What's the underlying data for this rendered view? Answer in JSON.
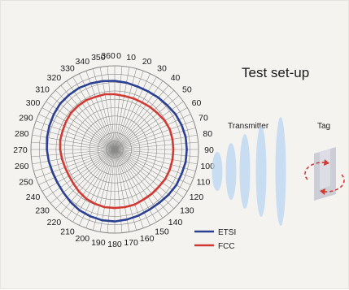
{
  "chart_data": {
    "type": "polar-line",
    "title": "",
    "angles": [
      0,
      10,
      20,
      30,
      40,
      50,
      60,
      70,
      80,
      90,
      100,
      110,
      120,
      130,
      140,
      150,
      160,
      170,
      180,
      190,
      200,
      210,
      220,
      230,
      240,
      250,
      260,
      270,
      280,
      290,
      300,
      310,
      320,
      330,
      340,
      350
    ],
    "tick_labels": [
      "0",
      "10",
      "20",
      "30",
      "40",
      "50",
      "60",
      "70",
      "80",
      "90",
      "100",
      "110",
      "120",
      "130",
      "140",
      "150",
      "160",
      "170",
      "180",
      "190",
      "200",
      "210",
      "220",
      "230",
      "240",
      "250",
      "260",
      "270",
      "280",
      "290",
      "300",
      "310",
      "320",
      "330",
      "340",
      "350",
      "360"
    ],
    "rlim": [
      0,
      10
    ],
    "grid": true,
    "legend_position": "bottom-right",
    "series": [
      {
        "name": "ETSI",
        "color": "#2b3f93",
        "values": [
          8.2,
          8.1,
          8.0,
          8.0,
          8.1,
          8.2,
          8.4,
          8.5,
          8.6,
          8.6,
          8.6,
          8.5,
          8.5,
          8.4,
          8.3,
          8.3,
          8.4,
          8.5,
          8.6,
          8.6,
          8.5,
          8.4,
          8.2,
          8.0,
          7.9,
          7.9,
          8.0,
          8.1,
          8.2,
          8.3,
          8.4,
          8.5,
          8.5,
          8.5,
          8.4,
          8.3
        ]
      },
      {
        "name": "FCC",
        "color": "#d13a34",
        "values": [
          6.6,
          6.5,
          6.5,
          6.5,
          6.6,
          6.7,
          6.9,
          7.0,
          7.0,
          7.0,
          7.0,
          7.0,
          7.0,
          6.9,
          6.9,
          6.9,
          7.0,
          7.0,
          7.0,
          7.0,
          6.9,
          6.8,
          6.6,
          6.4,
          6.3,
          6.3,
          6.4,
          6.5,
          6.6,
          6.6,
          6.7,
          6.8,
          6.8,
          6.8,
          6.7,
          6.7
        ]
      }
    ]
  },
  "setup": {
    "title": "Test set-up",
    "transmitter_label": "Transmitter",
    "tag_label": "Tag",
    "wave_color": "#b9d6f2",
    "tag_color": "#c9c9d3",
    "rotation_color": "#d13a34"
  }
}
